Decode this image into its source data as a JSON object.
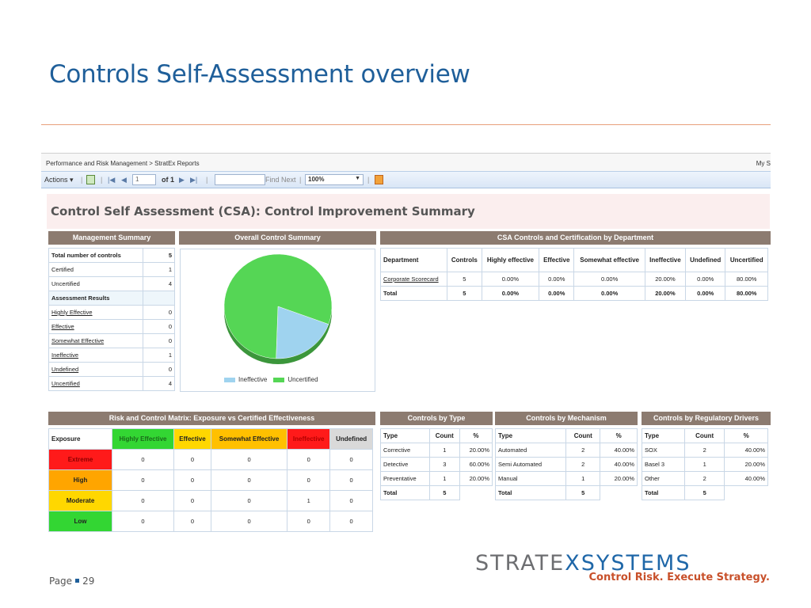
{
  "slide": {
    "title": "Controls Self-Assessment overview",
    "page_label": "Page",
    "page_number": "29"
  },
  "brand": {
    "name_part1": "STRATE",
    "name_part2": "XSYSTEMS",
    "tagline": "Control Risk. Execute Strategy."
  },
  "viewer": {
    "breadcrumb": "Performance and Risk Management > StratEx Reports",
    "my_link": "My S",
    "actions_label": "Actions ▾",
    "page_value": "1",
    "page_of": "of 1",
    "find_next": "Find Next",
    "zoom": "100%",
    "icons": [
      "export-icon",
      "first-page-icon",
      "previous-page-icon",
      "next-page-icon",
      "last-page-icon",
      "save-icon"
    ]
  },
  "report": {
    "title": "Control Self Assessment (CSA): Control Improvement Summary",
    "management": {
      "header": "Management Summary",
      "rows": [
        {
          "label": "Total number of controls",
          "value": "5",
          "kind": "bold"
        },
        {
          "label": "Certified",
          "value": "1",
          "kind": "plain"
        },
        {
          "label": "Uncertified",
          "value": "4",
          "kind": "plain"
        },
        {
          "label": "Assessment Results",
          "value": "",
          "kind": "subhead"
        },
        {
          "label": "Highly Effective",
          "value": "0",
          "kind": "link"
        },
        {
          "label": "Effective",
          "value": "0",
          "kind": "link"
        },
        {
          "label": "Somewhat Effective",
          "value": "0",
          "kind": "link"
        },
        {
          "label": "Ineffective",
          "value": "1",
          "kind": "link"
        },
        {
          "label": "Undefined",
          "value": "0",
          "kind": "link"
        },
        {
          "label": "Uncertified",
          "value": "4",
          "kind": "link"
        }
      ]
    },
    "overall": {
      "header": "Overall Control Summary"
    },
    "department": {
      "header": "CSA Controls and Certification by Department",
      "columns": [
        "Department",
        "Controls",
        "Highly effective",
        "Effective",
        "Somewhat effective",
        "Ineffective",
        "Undefined",
        "Uncertified"
      ],
      "rows": [
        [
          "Corporate Scorecard",
          "5",
          "0.00%",
          "0.00%",
          "0.00%",
          "20.00%",
          "0.00%",
          "80.00%"
        ],
        [
          "Total",
          "5",
          "0.00%",
          "0.00%",
          "0.00%",
          "20.00%",
          "0.00%",
          "80.00%"
        ]
      ]
    },
    "matrix": {
      "header": "Risk and Control Matrix: Exposure vs Certified Effectiveness",
      "columns": [
        "Exposure",
        "Highly Effective",
        "Effective",
        "Somewhat Effective",
        "Ineffective",
        "Undefined"
      ],
      "column_colors": [
        "#ffffff",
        "#33d633",
        "#ffd700",
        "#ffc000",
        "#ff1a1a",
        "#d9d9d9"
      ],
      "rows": [
        {
          "label": "Extreme",
          "color": "#ff1a1a",
          "values": [
            "0",
            "0",
            "0",
            "0",
            "0"
          ]
        },
        {
          "label": "High",
          "color": "#ffa500",
          "values": [
            "0",
            "0",
            "0",
            "0",
            "0"
          ]
        },
        {
          "label": "Moderate",
          "color": "#ffd700",
          "values": [
            "0",
            "0",
            "0",
            "1",
            "0"
          ]
        },
        {
          "label": "Low",
          "color": "#33d633",
          "values": [
            "0",
            "0",
            "0",
            "0",
            "0"
          ]
        }
      ]
    },
    "by_type": {
      "header": "Controls by Type",
      "columns": [
        "Type",
        "Count",
        "%"
      ],
      "rows": [
        [
          "Corrective",
          "1",
          "20.00%"
        ],
        [
          "Detective",
          "3",
          "60.00%"
        ],
        [
          "Preventative",
          "1",
          "20.00%"
        ]
      ],
      "total": [
        "Total",
        "5",
        ""
      ]
    },
    "by_mechanism": {
      "header": "Controls by Mechanism",
      "columns": [
        "Type",
        "Count",
        "%"
      ],
      "rows": [
        [
          "Automated",
          "2",
          "40.00%"
        ],
        [
          "Semi Automated",
          "2",
          "40.00%"
        ],
        [
          "Manual",
          "1",
          "20.00%"
        ]
      ],
      "total": [
        "Total",
        "5",
        ""
      ]
    },
    "by_regulatory": {
      "header": "Controls by Regulatory Drivers",
      "columns": [
        "Type",
        "Count",
        "%"
      ],
      "rows": [
        [
          "SOX",
          "2",
          "40.00%"
        ],
        [
          "Basel 3",
          "1",
          "20.00%"
        ],
        [
          "Other",
          "2",
          "40.00%"
        ]
      ],
      "total": [
        "Total",
        "5",
        ""
      ]
    }
  },
  "chart_data": {
    "type": "pie",
    "title": "",
    "categories": [
      "Ineffective",
      "Uncertified"
    ],
    "values": [
      1,
      4
    ],
    "colors": [
      "#9fd3ef",
      "#55d655"
    ],
    "legend": "bottom"
  }
}
